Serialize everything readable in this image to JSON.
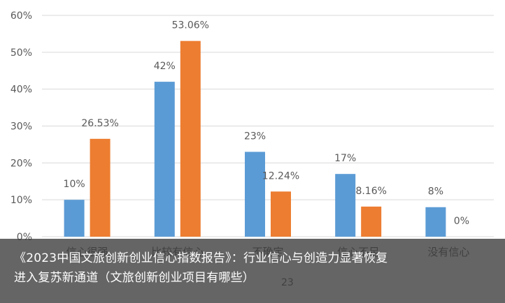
{
  "chart_data": {
    "type": "bar",
    "categories": [
      "信心很强",
      "比较有信心",
      "不确定",
      "信心不足",
      "没有信心"
    ],
    "series": [
      {
        "values": [
          10,
          42,
          23,
          17,
          8
        ],
        "labels": [
          "10%",
          "42%",
          "23%",
          "17%",
          "8%"
        ],
        "color": "#5B9BD5"
      },
      {
        "values": [
          26.53,
          53.06,
          12.24,
          8.16,
          0
        ],
        "labels": [
          "26.53%",
          "53.06%",
          "12.24%",
          "8.16%",
          "0%"
        ],
        "color": "#ED7D31"
      }
    ],
    "y_ticks": [
      "0%",
      "10%",
      "20%",
      "30%",
      "40%",
      "50%",
      "60%"
    ],
    "ylim": [
      0,
      60
    ],
    "grid": true,
    "legend_partial_text": "23",
    "colors": {
      "axis_text": "#595959",
      "grid": "#D9D9D9"
    }
  },
  "caption": {
    "line1": "《2023中国文旅创新创业信心指数报告》：行业信心与创造力显著恢复",
    "line2": "进入复苏新通道（文旅创新创业项目有哪些）"
  }
}
